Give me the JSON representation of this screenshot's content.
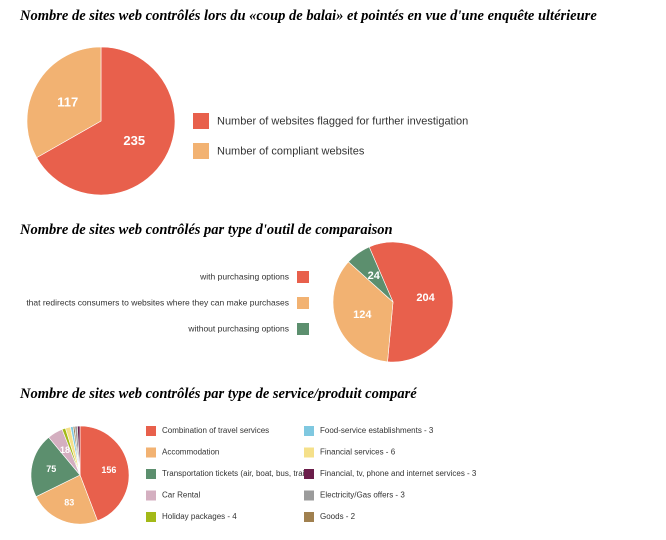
{
  "chart_data": [
    {
      "type": "pie",
      "title": "Nombre de sites web contrôlés lors du «coup de balai» et pointés en vue d'une enquête ultérieure",
      "legend_position": "right",
      "slices": [
        {
          "label": "Number of websites flagged for further investigation",
          "value": 235,
          "value_label": "235",
          "color": "#E8604C"
        },
        {
          "label": "Number of compliant websites",
          "value": 117,
          "value_label": "117",
          "color": "#F2B272"
        }
      ]
    },
    {
      "type": "pie",
      "title": "Nombre de sites web contrôlés par type d'outil de comparaison",
      "legend_position": "left",
      "slices": [
        {
          "label": "with purchasing options",
          "value": 204,
          "value_label": "204",
          "color": "#E8604C"
        },
        {
          "label": "that redirects consumers to websites where they can make purchases",
          "value": 124,
          "value_label": "124",
          "color": "#F2B272"
        },
        {
          "label": "without purchasing options",
          "value": 24,
          "value_label": "24",
          "color": "#5C8F6E"
        }
      ]
    },
    {
      "type": "pie",
      "title": "Nombre de sites web contrôlés par type de service/produit comparé",
      "legend_position": "right",
      "slices": [
        {
          "label": "Combination of travel services",
          "value": 156,
          "value_label": "156",
          "color": "#E8604C"
        },
        {
          "label": "Accommodation",
          "value": 83,
          "value_label": "83",
          "color": "#F2B272"
        },
        {
          "label": "Transportation tickets (air, boat, bus, train)",
          "value": 75,
          "value_label": "75",
          "color": "#5C8F6E"
        },
        {
          "label": "Car Rental",
          "value": 18,
          "value_label": "18",
          "color": "#D4AFC0"
        },
        {
          "label": "Holiday packages - 4",
          "value": 4,
          "value_label": "",
          "color": "#A3B918"
        },
        {
          "label": "Food-service establishments - 3",
          "value": 3,
          "value_label": "",
          "color": "#7FC8E0"
        },
        {
          "label": "Financial services - 6",
          "value": 6,
          "value_label": "",
          "color": "#F5E08A"
        },
        {
          "label": "Financial, tv, phone and internet services - 3",
          "value": 3,
          "value_label": "",
          "color": "#6B1D4A"
        },
        {
          "label": "Electricity/Gas offers - 3",
          "value": 3,
          "value_label": "",
          "color": "#9B9B9B"
        },
        {
          "label": "Goods - 2",
          "value": 2,
          "value_label": "",
          "color": "#A0804F"
        }
      ]
    }
  ]
}
